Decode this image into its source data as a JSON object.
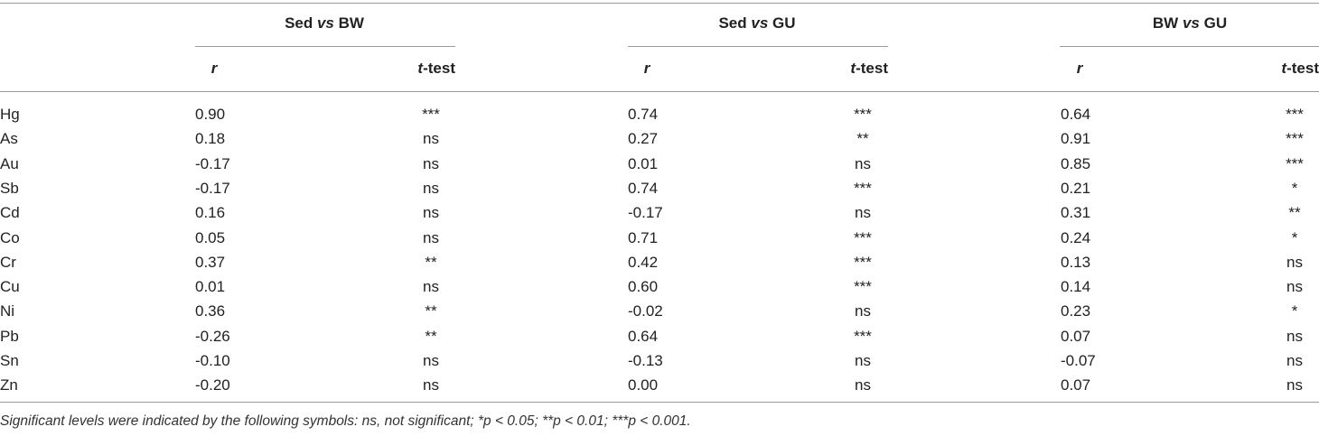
{
  "group_headers": [
    {
      "pre": "Sed ",
      "vs": "vs",
      "post": " BW"
    },
    {
      "pre": "Sed ",
      "vs": "vs",
      "post": " GU"
    },
    {
      "pre": "BW ",
      "vs": "vs",
      "post": " GU"
    }
  ],
  "sub_headers": {
    "r": "r",
    "t_italic": "t",
    "t_rest": "-test"
  },
  "rows": [
    {
      "element": "Hg",
      "values": [
        "0.90",
        "***",
        "0.74",
        "***",
        "0.64",
        "***"
      ]
    },
    {
      "element": "As",
      "values": [
        "0.18",
        "ns",
        "0.27",
        "**",
        "0.91",
        "***"
      ]
    },
    {
      "element": "Au",
      "values": [
        "-0.17",
        "ns",
        "0.01",
        "ns",
        "0.85",
        "***"
      ]
    },
    {
      "element": "Sb",
      "values": [
        "-0.17",
        "ns",
        "0.74",
        "***",
        "0.21",
        "*"
      ]
    },
    {
      "element": "Cd",
      "values": [
        "0.16",
        "ns",
        "-0.17",
        "ns",
        "0.31",
        "**"
      ]
    },
    {
      "element": "Co",
      "values": [
        "0.05",
        "ns",
        "0.71",
        "***",
        "0.24",
        "*"
      ]
    },
    {
      "element": "Cr",
      "values": [
        "0.37",
        "**",
        "0.42",
        "***",
        "0.13",
        "ns"
      ]
    },
    {
      "element": "Cu",
      "values": [
        "0.01",
        "ns",
        "0.60",
        "***",
        "0.14",
        "ns"
      ]
    },
    {
      "element": "Ni",
      "values": [
        "0.36",
        "**",
        "-0.02",
        "ns",
        "0.23",
        "*"
      ]
    },
    {
      "element": "Pb",
      "values": [
        "-0.26",
        "**",
        "0.64",
        "***",
        "0.07",
        "ns"
      ]
    },
    {
      "element": "Sn",
      "values": [
        "-0.10",
        "ns",
        "-0.13",
        "ns",
        "-0.07",
        "ns"
      ]
    },
    {
      "element": "Zn",
      "values": [
        "-0.20",
        "ns",
        "0.00",
        "ns",
        "0.07",
        "ns"
      ]
    }
  ],
  "footnote": "Significant levels were indicated by the following symbols: ns, not significant; *p < 0.05; **p < 0.01; ***p < 0.001."
}
